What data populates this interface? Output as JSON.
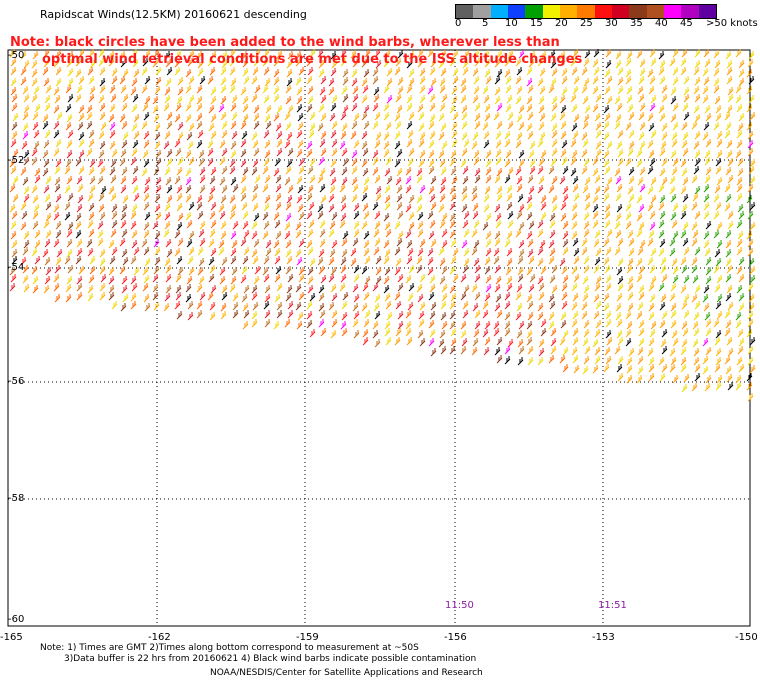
{
  "header": {
    "title": "Rapidscat Winds(12.5KM) 20160621 descending",
    "note_line1": "Note: black circles have been added to the wind barbs, wherever less than",
    "note_line2": "optimal wind retrieval conditions are met due to the ISS altitude changes"
  },
  "legend": {
    "labels": [
      "0",
      "5",
      "10",
      "15",
      "20",
      "25",
      "30",
      "35",
      "40",
      "45",
      ">50 knots"
    ],
    "colors": [
      "#606060",
      "#a0a0a0",
      "#00b0ff",
      "#1040ff",
      "#00a000",
      "#f0f000",
      "#ffb000",
      "#ff7a00",
      "#ff1010",
      "#d00020",
      "#8b3a1a",
      "#b05020",
      "#ff00ff",
      "#b000c0",
      "#6000a0"
    ]
  },
  "axes": {
    "lat_labels": [
      "-50",
      "-52",
      "-54",
      "-56",
      "-58",
      "-60"
    ],
    "lon_labels": [
      "-165",
      "-162",
      "-159",
      "-156",
      "-153",
      "-150"
    ]
  },
  "time_marks": [
    "11:50",
    "11:51"
  ],
  "footer": {
    "notes_line1": "Note: 1) Times are GMT 2)Times along bottom correspond to measurement at ~50S",
    "notes_line2": "3)Data buffer is 22 hrs from 20160621 4) Black wind barbs indicate possible contamination",
    "credit": "NOAA/NESDIS/Center for Satellite Applications and Research"
  }
}
